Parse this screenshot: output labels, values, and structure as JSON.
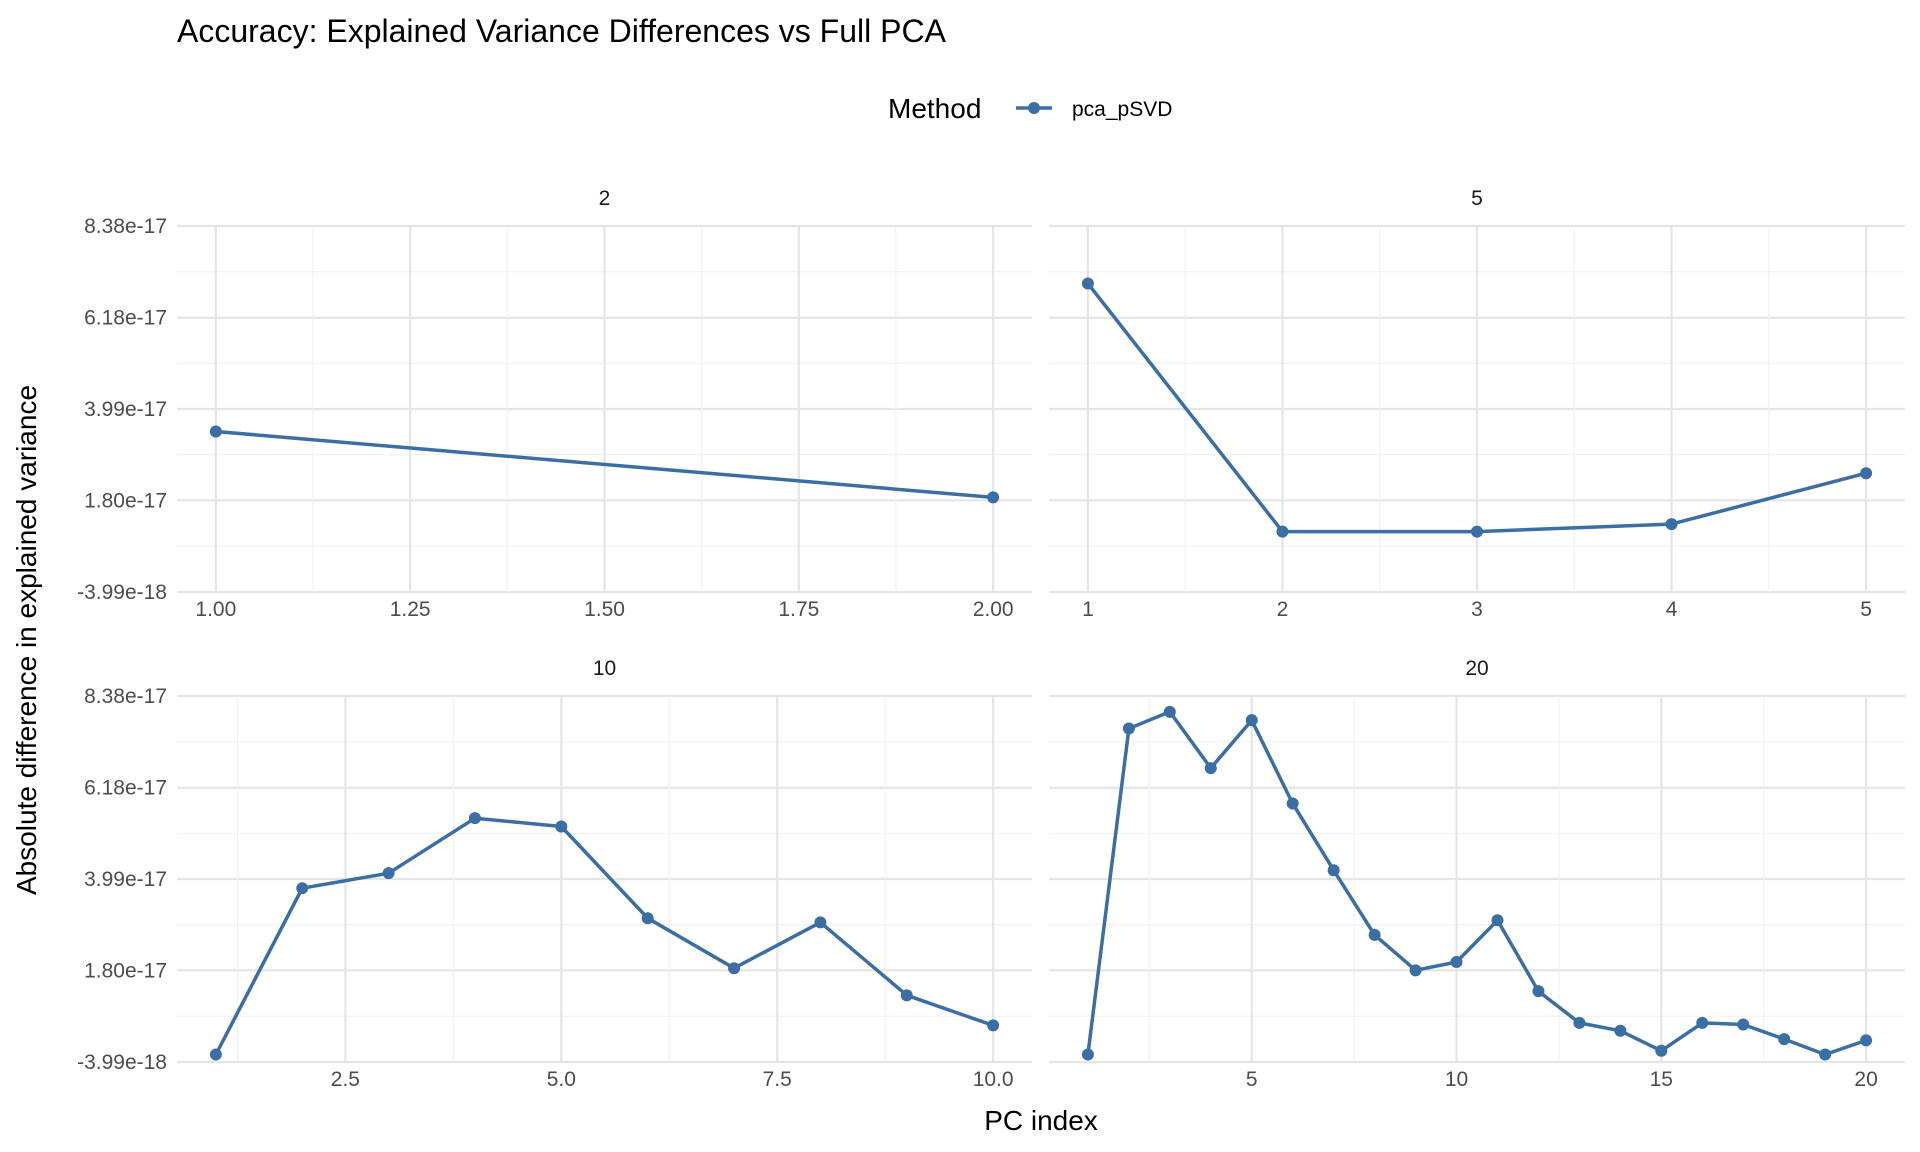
{
  "chart_data": {
    "type": "line",
    "title": "Accuracy: Explained Variance Differences vs Full PCA",
    "xlabel": "PC index",
    "ylabel": "Absolute difference in explained variance",
    "legend": {
      "title": "Method",
      "position": "top",
      "entries": [
        "pca_pSVD"
      ]
    },
    "color": "#3a6ea5",
    "grid": true,
    "y_ticks": [
      "8.38e-17",
      "6.18e-17",
      "3.99e-17",
      "1.80e-17",
      "-3.99e-18"
    ],
    "ylim": [
      -3.99e-18,
      8.38e-17
    ],
    "panels": [
      {
        "label": "2",
        "x_ticks": [
          "1.00",
          "1.25",
          "1.50",
          "1.75",
          "2.00"
        ],
        "xlim": [
          0.95,
          2.05
        ],
        "series": [
          {
            "name": "pca_pSVD",
            "x": [
              1,
              2
            ],
            "y": [
              3.45e-17,
              1.87e-17
            ]
          }
        ]
      },
      {
        "label": "5",
        "x_ticks": [
          "1",
          "2",
          "3",
          "4",
          "5"
        ],
        "xlim": [
          0.8,
          5.2
        ],
        "series": [
          {
            "name": "pca_pSVD",
            "x": [
              1,
              2,
              3,
              4,
              5
            ],
            "y": [
              7e-17,
              1.05e-17,
              1.05e-17,
              1.23e-17,
              2.45e-17
            ]
          }
        ]
      },
      {
        "label": "10",
        "x_ticks": [
          "2.5",
          "5.0",
          "7.5",
          "10.0"
        ],
        "xlim": [
          0.55,
          10.45
        ],
        "series": [
          {
            "name": "pca_pSVD",
            "x": [
              1,
              2,
              3,
              4,
              5,
              6,
              7,
              8,
              9,
              10
            ],
            "y": [
              -2.2e-18,
              3.77e-17,
              4.13e-17,
              5.45e-17,
              5.25e-17,
              3.05e-17,
              1.85e-17,
              2.95e-17,
              1.2e-17,
              4.8e-18
            ]
          }
        ]
      },
      {
        "label": "20",
        "x_ticks": [
          "5",
          "10",
          "15",
          "20"
        ],
        "xlim": [
          0.05,
          20.95
        ],
        "series": [
          {
            "name": "pca_pSVD",
            "x": [
              1,
              2,
              3,
              4,
              5,
              6,
              7,
              8,
              9,
              10,
              11,
              12,
              13,
              14,
              15,
              16,
              17,
              18,
              19,
              20
            ],
            "y": [
              -2.2e-18,
              7.6e-17,
              8e-17,
              6.65e-17,
              7.8e-17,
              5.8e-17,
              4.2e-17,
              2.65e-17,
              1.8e-17,
              2e-17,
              3e-17,
              1.3e-17,
              5.4e-18,
              3.5e-18,
              -1.3e-18,
              5.4e-18,
              5e-18,
              1.5e-18,
              -2.2e-18,
              1.2e-18
            ]
          }
        ]
      }
    ]
  }
}
